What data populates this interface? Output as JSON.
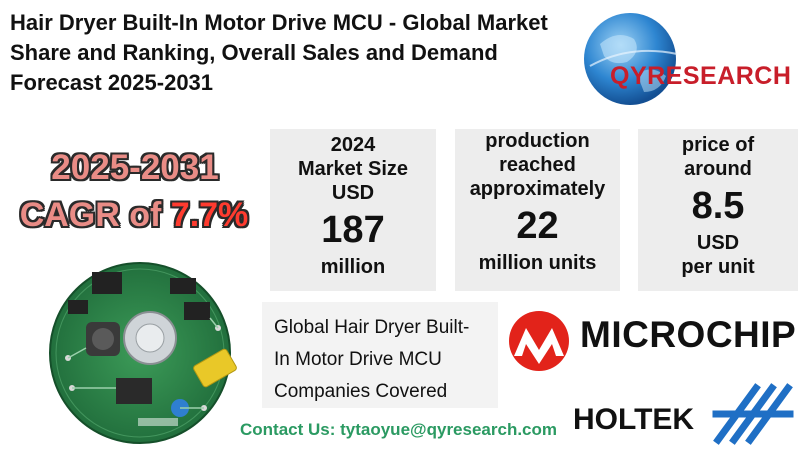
{
  "title": "Hair Dryer Built-In Motor Drive MCU - Global Market Share and Ranking, Overall Sales and Demand Forecast 2025-2031",
  "logo": {
    "name": "QYRESEARCH",
    "accent": "#c81e2a"
  },
  "cagr": {
    "years": "2025-2031",
    "label": "CAGR of ",
    "value": "7.7%"
  },
  "stats": [
    {
      "lines": [
        "2024",
        "Market Size",
        "USD"
      ],
      "big": "187",
      "unit": "million"
    },
    {
      "lines": [
        "production",
        "reached",
        "approximately"
      ],
      "big": "22",
      "unit": "million units"
    },
    {
      "lines": [
        "price of",
        "around"
      ],
      "big": "8.5",
      "unit_lines": [
        "USD",
        "per unit"
      ]
    }
  ],
  "companies_covered": {
    "lines": [
      "Global Hair Dryer Built-",
      "In Motor Drive MCU",
      "Companies Covered"
    ]
  },
  "companies": [
    "MICROCHIP",
    "HOLTEK"
  ],
  "contact": "Contact Us: tytaoyue@qyresearch.com",
  "colors": {
    "cagr_text": "#e98c86",
    "cagr_value": "#ff3b2f",
    "contact": "#2b9a62",
    "panel": "#ededed"
  }
}
